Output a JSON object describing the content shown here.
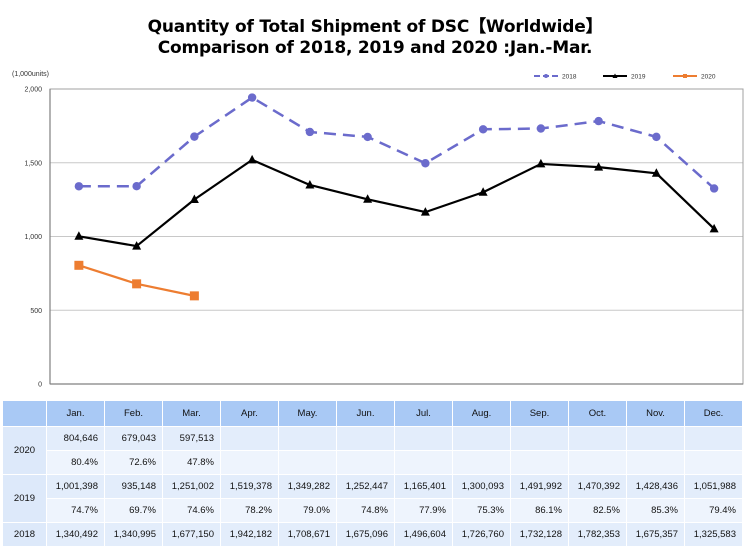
{
  "title_line1": "Quantity of Total Shipment of DSC【Worldwide】",
  "title_line2": "Comparison of 2018, 2019 and 2020 :Jan.-Mar.",
  "chart_data": {
    "type": "line",
    "title": "Quantity of Total Shipment of DSC【Worldwide】 Comparison of 2018, 2019 and 2020 :Jan.-Mar.",
    "ylabel": "(1,000units)",
    "xlabel": "",
    "ylim": [
      0,
      2000
    ],
    "yticks": [
      0,
      500,
      1000,
      1500,
      2000
    ],
    "ytick_labels": [
      "0",
      "500",
      "1,000",
      "1,500",
      "2,000"
    ],
    "grid": true,
    "legend_position": "top-right",
    "categories": [
      "Jan.",
      "Feb.",
      "Mar.",
      "Apr.",
      "May.",
      "Jun.",
      "Jul.",
      "Aug.",
      "Sep.",
      "Oct.",
      "Nov.",
      "Dec."
    ],
    "series": [
      {
        "name": "2018",
        "color": "#6b6bcc",
        "style": "dashed",
        "marker": "circle",
        "values": [
          1340.492,
          1340.995,
          1677.15,
          1942.182,
          1708.671,
          1675.096,
          1496.604,
          1726.76,
          1732.128,
          1782.353,
          1675.357,
          1325.583
        ]
      },
      {
        "name": "2019",
        "color": "#000000",
        "style": "solid",
        "marker": "triangle",
        "values": [
          1001.398,
          935.148,
          1251.002,
          1519.378,
          1349.282,
          1252.447,
          1165.401,
          1300.093,
          1491.992,
          1470.392,
          1428.436,
          1051.988
        ]
      },
      {
        "name": "2020",
        "color": "#ed7d31",
        "style": "solid",
        "marker": "square",
        "values": [
          804.646,
          679.043,
          597.513,
          null,
          null,
          null,
          null,
          null,
          null,
          null,
          null,
          null
        ]
      }
    ]
  },
  "table": {
    "header": [
      "",
      "Jan.",
      "Feb.",
      "Mar.",
      "Apr.",
      "May.",
      "Jun.",
      "Jul.",
      "Aug.",
      "Sep.",
      "Oct.",
      "Nov.",
      "Dec."
    ],
    "rows": [
      {
        "year": "2020",
        "values": [
          "804,646",
          "679,043",
          "597,513",
          "",
          "",
          "",
          "",
          "",
          "",
          "",
          "",
          ""
        ],
        "pcts": [
          "80.4%",
          "72.6%",
          "47.8%",
          "",
          "",
          "",
          "",
          "",
          "",
          "",
          "",
          ""
        ]
      },
      {
        "year": "2019",
        "values": [
          "1,001,398",
          "935,148",
          "1,251,002",
          "1,519,378",
          "1,349,282",
          "1,252,447",
          "1,165,401",
          "1,300,093",
          "1,491,992",
          "1,470,392",
          "1,428,436",
          "1,051,988"
        ],
        "pcts": [
          "74.7%",
          "69.7%",
          "74.6%",
          "78.2%",
          "79.0%",
          "74.8%",
          "77.9%",
          "75.3%",
          "86.1%",
          "82.5%",
          "85.3%",
          "79.4%"
        ]
      },
      {
        "year": "2018",
        "values": [
          "1,340,492",
          "1,340,995",
          "1,677,150",
          "1,942,182",
          "1,708,671",
          "1,675,096",
          "1,496,604",
          "1,726,760",
          "1,732,128",
          "1,782,353",
          "1,675,357",
          "1,325,583"
        ]
      }
    ]
  }
}
